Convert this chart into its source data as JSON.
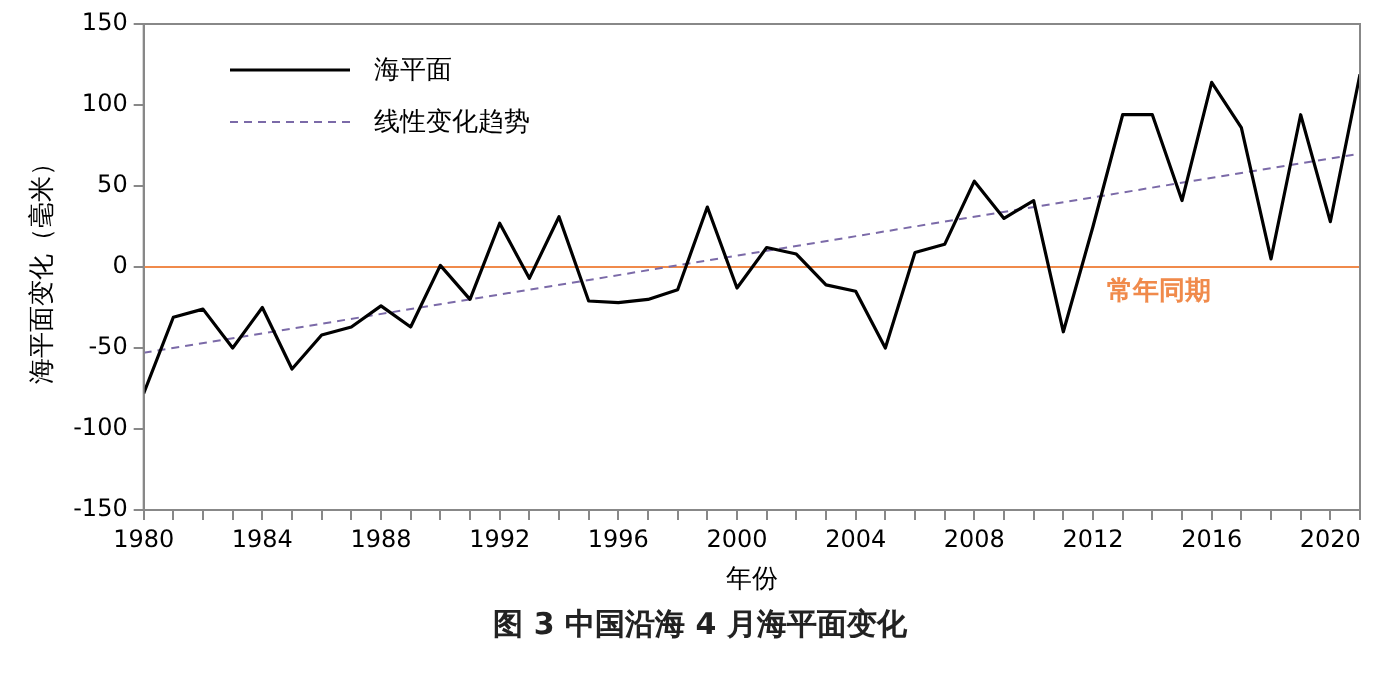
{
  "chart_data": {
    "type": "line",
    "title": "图 3 中国沿海 4 月海平面变化",
    "xlabel": "年份",
    "ylabel": "海平面变化（毫米）",
    "x": [
      1980,
      1981,
      1982,
      1983,
      1984,
      1985,
      1986,
      1987,
      1988,
      1989,
      1990,
      1991,
      1992,
      1993,
      1994,
      1995,
      1996,
      1997,
      1998,
      1999,
      2000,
      2001,
      2002,
      2003,
      2004,
      2005,
      2006,
      2007,
      2008,
      2009,
      2010,
      2011,
      2012,
      2013,
      2014,
      2015,
      2016,
      2017,
      2018,
      2019,
      2020,
      2021
    ],
    "series": [
      {
        "name": "海平面",
        "color": "#000000",
        "line_style": "solid",
        "values": [
          -78,
          -31,
          -26,
          -50,
          -25,
          -63,
          -42,
          -37,
          -24,
          -37,
          1,
          -20,
          27,
          -7,
          31,
          -21,
          -22,
          -20,
          -14,
          37,
          -13,
          12,
          8,
          -11,
          -15,
          -50,
          9,
          14,
          53,
          30,
          41,
          -40,
          25,
          94,
          94,
          41,
          114,
          86,
          5,
          94,
          28,
          119
        ]
      },
      {
        "name": "线性变化趋势",
        "color": "#7b6aa8",
        "line_style": "dashed",
        "x": [
          1980,
          2021
        ],
        "values": [
          -53,
          70
        ]
      }
    ],
    "xlim": [
      1980,
      2021
    ],
    "xticks": [
      1980,
      {
        "value": 1981,
        "label": null
      },
      {
        "value": 1982,
        "label": null
      },
      {
        "value": 1983,
        "label": null
      },
      1984,
      {
        "value": 1985,
        "label": null
      },
      {
        "value": 1986,
        "label": null
      },
      {
        "value": 1987,
        "label": null
      },
      1988,
      {
        "value": 1989,
        "label": null
      },
      {
        "value": 1990,
        "label": null
      },
      {
        "value": 1991,
        "label": null
      },
      1992,
      {
        "value": 1993,
        "label": null
      },
      {
        "value": 1994,
        "label": null
      },
      {
        "value": 1995,
        "label": null
      },
      1996,
      {
        "value": 1997,
        "label": null
      },
      {
        "value": 1998,
        "label": null
      },
      {
        "value": 1999,
        "label": null
      },
      2000,
      {
        "value": 2001,
        "label": null
      },
      {
        "value": 2002,
        "label": null
      },
      {
        "value": 2003,
        "label": null
      },
      2004,
      {
        "value": 2005,
        "label": null
      },
      {
        "value": 2006,
        "label": null
      },
      {
        "value": 2007,
        "label": null
      },
      2008,
      {
        "value": 2009,
        "label": null
      },
      {
        "value": 2010,
        "label": null
      },
      {
        "value": 2011,
        "label": null
      },
      2012,
      {
        "value": 2013,
        "label": null
      },
      {
        "value": 2014,
        "label": null
      },
      {
        "value": 2015,
        "label": null
      },
      2016,
      {
        "value": 2017,
        "label": null
      },
      {
        "value": 2018,
        "label": null
      },
      {
        "value": 2019,
        "label": null
      },
      2020,
      {
        "value": 2021,
        "label": null
      }
    ],
    "ylim": [
      -150,
      150
    ],
    "yticks": [
      -150,
      -100,
      -50,
      0,
      50,
      100,
      150
    ],
    "ref_lines": [
      {
        "axis": "y",
        "value": 0,
        "label": "常年同期",
        "color": "#f08a4b"
      }
    ],
    "grid": false,
    "legend": "top left",
    "marker": "none"
  }
}
